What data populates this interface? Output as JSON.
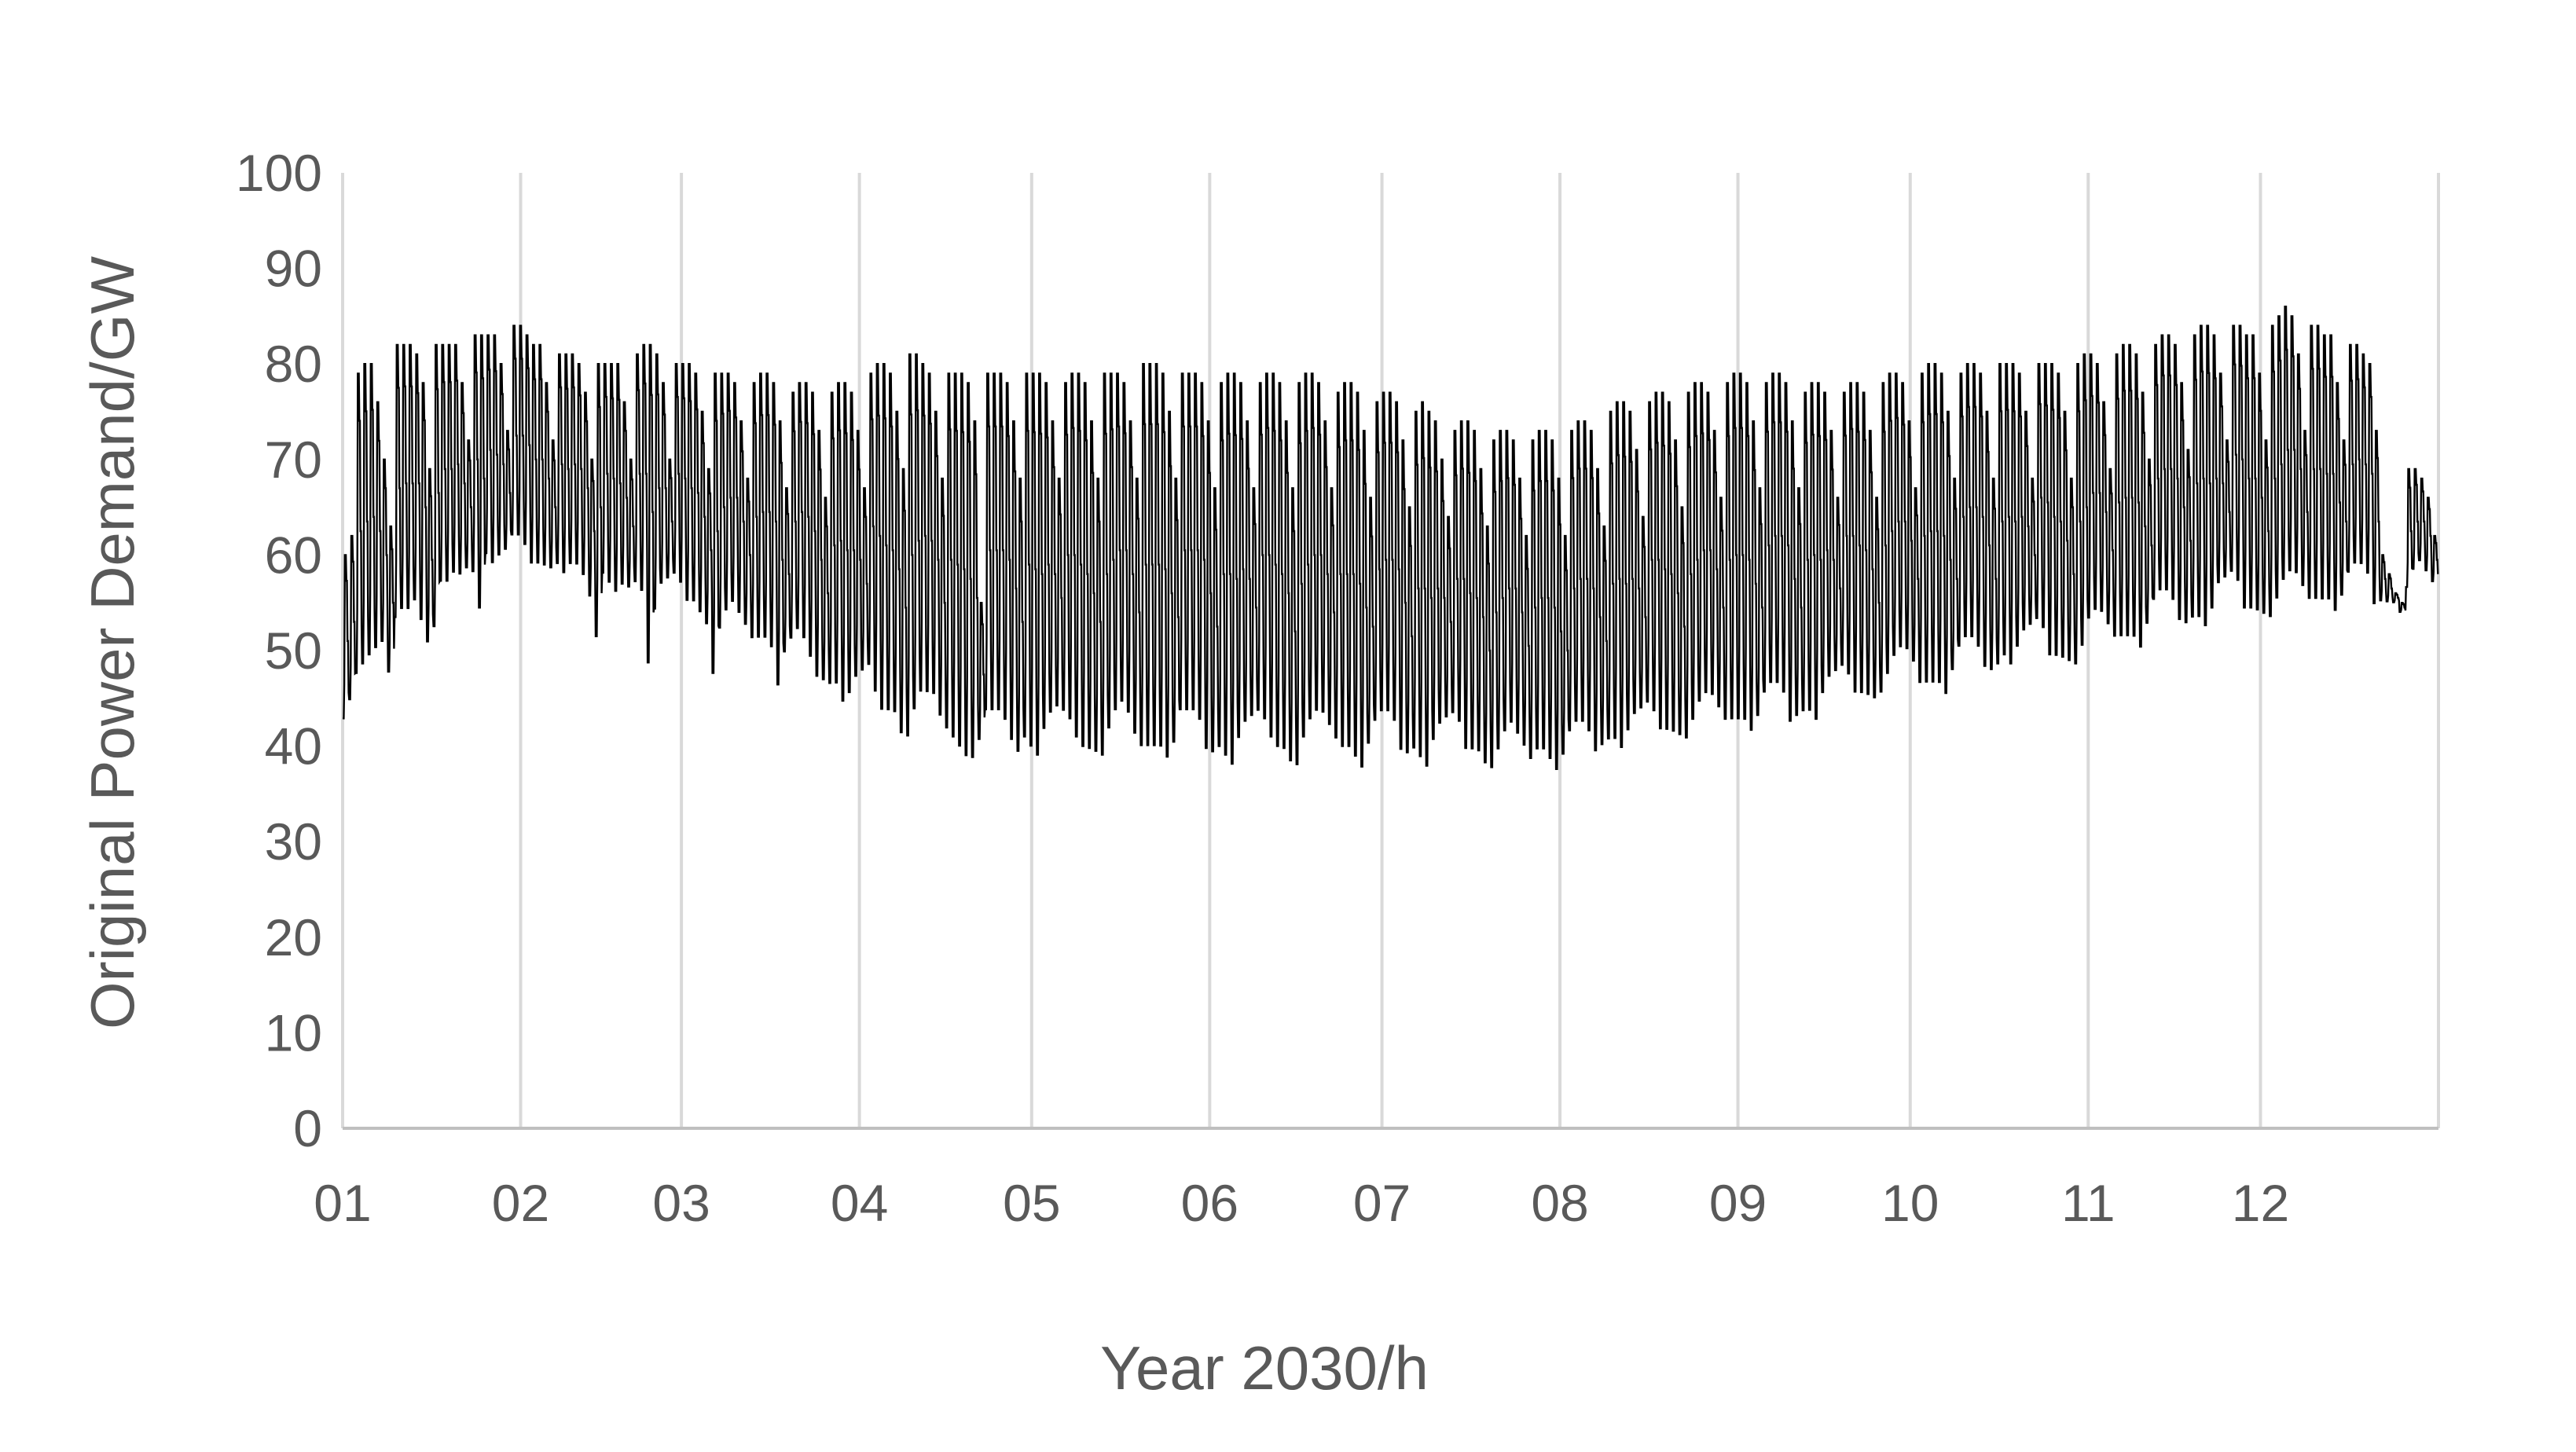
{
  "colors": {
    "series": "#000000",
    "gridline": "#d9d9d9",
    "axis": "#bfbfbf",
    "text": "#595959",
    "background": "#ffffff"
  },
  "chart_data": {
    "type": "line",
    "title": "",
    "xlabel": "Year 2030/h",
    "ylabel": "Original Power Demand/GW",
    "ylim": [
      0,
      100
    ],
    "yticks": [
      0,
      10,
      20,
      30,
      40,
      50,
      60,
      70,
      80,
      90,
      100
    ],
    "xlim": [
      0,
      8760
    ],
    "x_tick_labels": [
      "01",
      "02",
      "03",
      "04",
      "05",
      "06",
      "07",
      "08",
      "09",
      "10",
      "11",
      "12"
    ],
    "x_tick_hours": [
      0,
      744,
      1416,
      2160,
      2880,
      3624,
      4344,
      5088,
      5832,
      6552,
      7296,
      8016
    ],
    "grid": {
      "vertical": true,
      "horizontal": false
    },
    "legend": "none",
    "series": [
      {
        "x_unit": "hour of year",
        "resolution": "daily (min and peak demand per day, GW)",
        "daily_min": [
          42,
          44,
          46,
          47,
          48,
          49,
          50,
          47,
          52,
          53,
          53,
          54,
          52,
          50,
          51,
          56,
          56,
          57,
          57,
          58,
          57,
          53,
          59,
          58,
          59,
          60,
          61,
          61,
          60,
          58,
          58,
          58,
          58,
          58,
          57,
          58,
          58,
          57,
          55,
          50,
          57,
          56,
          55,
          56,
          56,
          56,
          55,
          47,
          53,
          56,
          57,
          57,
          56,
          54,
          54,
          53,
          52,
          46,
          51,
          53,
          54,
          53,
          52,
          50,
          50,
          50,
          49,
          45,
          49,
          50,
          51,
          50,
          48,
          46,
          46,
          45,
          45,
          43,
          44,
          46,
          47,
          47,
          44,
          42,
          42,
          42,
          40,
          39,
          42,
          44,
          44,
          44,
          42,
          40,
          39,
          38,
          37,
          37,
          40,
          42,
          42,
          42,
          41,
          39,
          38,
          39,
          38,
          37,
          40,
          42,
          43,
          42,
          41,
          39,
          38,
          38,
          38,
          37,
          40,
          42,
          43,
          42,
          40,
          38,
          38,
          38,
          38,
          37,
          39,
          42,
          42,
          42,
          41,
          38,
          38,
          38,
          37,
          36,
          39,
          41,
          42,
          42,
          41,
          39,
          38,
          38,
          37,
          36,
          39,
          41,
          42,
          42,
          41,
          39,
          38,
          38,
          37,
          36,
          39,
          41,
          42,
          42,
          41,
          38,
          38,
          38,
          37,
          36,
          39,
          41,
          42,
          42,
          41,
          38,
          38,
          38,
          37,
          36,
          38,
          40,
          41,
          40,
          39,
          37,
          38,
          38,
          37,
          36,
          38,
          40,
          41,
          41,
          40,
          38,
          39,
          39,
          39,
          38,
          40,
          42,
          43,
          43,
          42,
          40,
          40,
          40,
          40,
          39,
          41,
          43,
          44,
          44,
          43,
          41,
          41,
          41,
          41,
          40,
          42,
          44,
          45,
          45,
          44,
          41,
          42,
          42,
          42,
          41,
          44,
          46,
          47,
          47,
          46,
          44,
          44,
          44,
          44,
          44,
          46,
          48,
          49,
          49,
          48,
          45,
          45,
          45,
          45,
          44,
          47,
          49,
          50,
          50,
          49,
          47,
          47,
          47,
          48,
          47,
          49,
          51,
          52,
          52,
          51,
          48,
          48,
          48,
          48,
          47,
          49,
          52,
          53,
          53,
          52,
          50,
          50,
          50,
          50,
          49,
          52,
          54,
          55,
          55,
          54,
          52,
          52,
          52,
          52,
          51,
          53,
          56,
          57,
          57,
          56,
          53,
          53,
          53,
          53,
          52,
          54,
          56,
          57,
          57,
          56,
          54,
          54,
          54,
          54,
          53,
          55,
          57,
          58,
          58,
          57,
          54,
          55,
          55,
          55,
          54,
          56,
          58,
          59,
          58,
          57,
          54,
          53,
          52,
          51,
          50,
          47,
          45,
          42,
          40,
          41,
          42,
          44,
          45,
          46,
          46
        ],
        "daily_peak": [
          60,
          62,
          79,
          80,
          80,
          76,
          70,
          63,
          82,
          82,
          82,
          81,
          78,
          69,
          82,
          82,
          82,
          82,
          78,
          72,
          83,
          83,
          83,
          83,
          80,
          73,
          84,
          84,
          83,
          82,
          82,
          78,
          72,
          81,
          81,
          81,
          80,
          77,
          70,
          80,
          80,
          80,
          80,
          76,
          70,
          81,
          82,
          82,
          81,
          78,
          70,
          80,
          80,
          80,
          79,
          75,
          69,
          79,
          79,
          79,
          78,
          74,
          68,
          78,
          79,
          79,
          78,
          74,
          67,
          77,
          78,
          78,
          77,
          73,
          66,
          77,
          78,
          78,
          77,
          73,
          67,
          79,
          80,
          80,
          79,
          75,
          69,
          81,
          81,
          80,
          79,
          75,
          68,
          79,
          79,
          79,
          78,
          74,
          55,
          79,
          79,
          79,
          78,
          74,
          68,
          79,
          79,
          79,
          78,
          74,
          68,
          78,
          79,
          79,
          78,
          74,
          68,
          79,
          79,
          79,
          78,
          74,
          68,
          80,
          80,
          80,
          79,
          75,
          68,
          79,
          79,
          79,
          78,
          74,
          67,
          78,
          79,
          79,
          78,
          74,
          67,
          78,
          79,
          79,
          78,
          74,
          67,
          78,
          79,
          79,
          78,
          74,
          67,
          77,
          78,
          78,
          77,
          73,
          66,
          76,
          77,
          77,
          76,
          72,
          65,
          75,
          76,
          75,
          74,
          70,
          64,
          73,
          74,
          74,
          73,
          69,
          63,
          72,
          73,
          73,
          72,
          68,
          62,
          72,
          73,
          73,
          72,
          68,
          62,
          73,
          74,
          74,
          73,
          69,
          63,
          75,
          76,
          76,
          75,
          71,
          64,
          76,
          77,
          77,
          76,
          72,
          65,
          77,
          78,
          78,
          77,
          73,
          66,
          78,
          79,
          79,
          78,
          74,
          67,
          78,
          79,
          79,
          78,
          74,
          67,
          77,
          78,
          78,
          77,
          73,
          66,
          77,
          78,
          78,
          77,
          73,
          66,
          78,
          79,
          79,
          78,
          74,
          67,
          79,
          80,
          80,
          79,
          75,
          68,
          79,
          80,
          80,
          79,
          75,
          68,
          80,
          80,
          80,
          79,
          75,
          68,
          80,
          80,
          80,
          79,
          75,
          68,
          80,
          81,
          81,
          80,
          76,
          69,
          81,
          82,
          82,
          81,
          77,
          70,
          82,
          83,
          83,
          82,
          78,
          71,
          83,
          84,
          84,
          83,
          79,
          72,
          84,
          84,
          83,
          83,
          79,
          72,
          84,
          85,
          86,
          85,
          81,
          73,
          84,
          84,
          83,
          83,
          78,
          72,
          82,
          82,
          81,
          80,
          73,
          60,
          58,
          56,
          55,
          69,
          69,
          68,
          66,
          62
        ]
      }
    ]
  }
}
